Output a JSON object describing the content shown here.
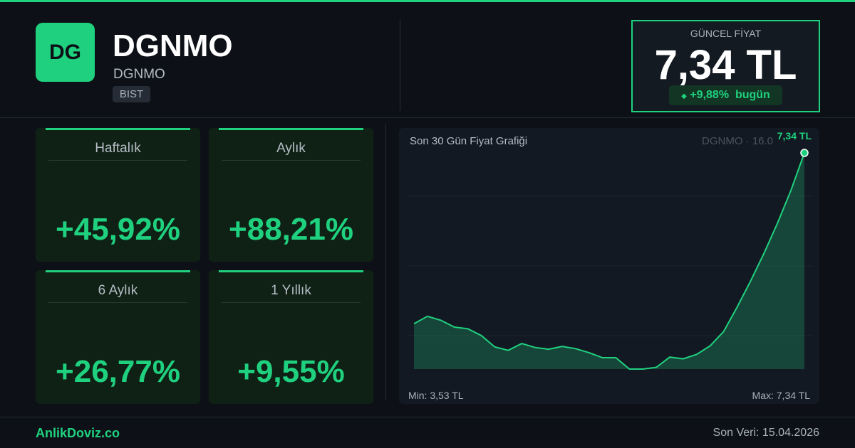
{
  "header": {
    "logo": "DG",
    "title": "DGNMO",
    "subtitle": "DGNMO",
    "exchange": "BIST"
  },
  "price": {
    "label": "GÜNCEL FİYAT",
    "value": "7,34 TL",
    "change": "+9,88%",
    "period": "bugün"
  },
  "cards": [
    {
      "label": "Haftalık",
      "value": "+45,92%"
    },
    {
      "label": "Aylık",
      "value": "+88,21%"
    },
    {
      "label": "6 Aylık",
      "value": "+26,77%"
    },
    {
      "label": "1 Yıllık",
      "value": "+9,55%"
    }
  ],
  "chart_data": {
    "type": "area",
    "title": "Son 30 Gün Fiyat Grafiği",
    "subtitle": "DGNMO · 16.0",
    "color": "#1fd17f",
    "values": [
      4.33,
      4.46,
      4.39,
      4.27,
      4.24,
      4.12,
      3.92,
      3.86,
      3.98,
      3.91,
      3.88,
      3.93,
      3.89,
      3.82,
      3.73,
      3.73,
      3.53,
      3.53,
      3.56,
      3.74,
      3.71,
      3.79,
      3.94,
      4.19,
      4.62,
      5.08,
      5.57,
      6.1,
      6.68,
      7.34
    ],
    "value_labels": [
      null,
      null,
      null,
      null,
      null,
      null,
      null,
      null,
      null,
      null,
      null,
      null,
      null,
      null,
      null,
      null,
      null,
      null,
      null,
      null,
      null,
      null,
      null,
      null,
      null,
      null,
      null,
      null,
      null,
      "7,34 TL"
    ],
    "min": {
      "value": 3.53,
      "label": "Min: 3,53 TL"
    },
    "max": {
      "value": 7.34,
      "label": "Max: 7,34 TL"
    }
  },
  "footer": {
    "brand": "AnlikDoviz.co",
    "updated": "Son Veri: 15.04.2026"
  }
}
